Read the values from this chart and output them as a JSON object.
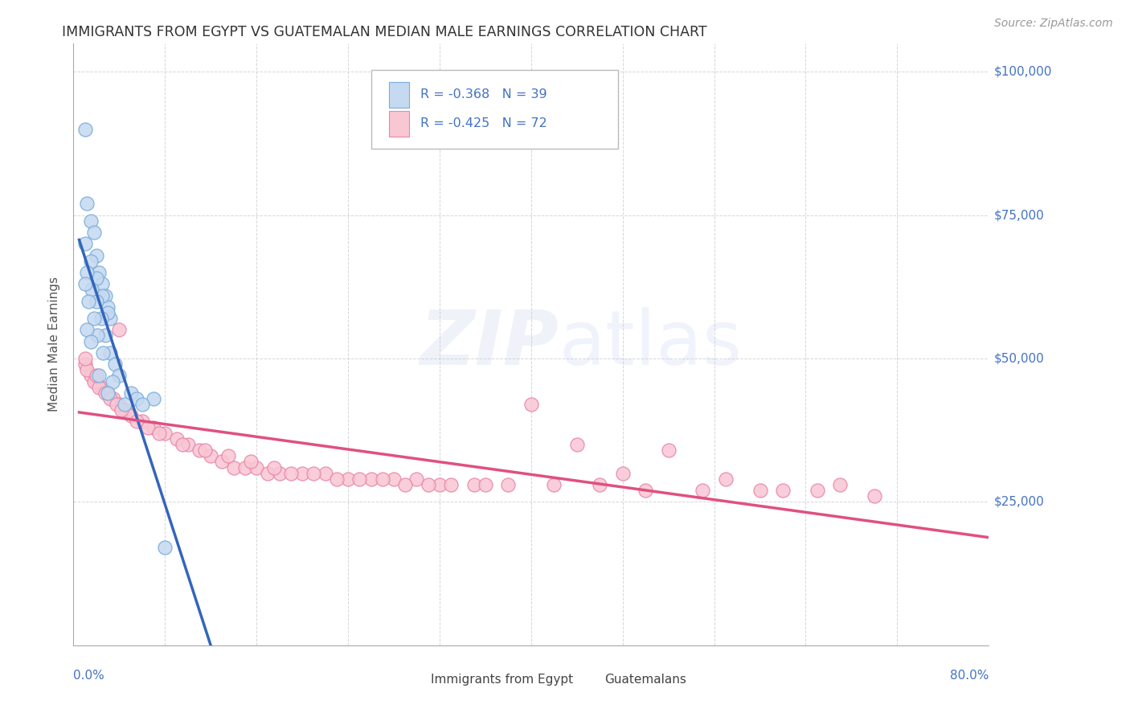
{
  "title": "IMMIGRANTS FROM EGYPT VS GUATEMALAN MEDIAN MALE EARNINGS CORRELATION CHART",
  "source": "Source: ZipAtlas.com",
  "ylabel": "Median Male Earnings",
  "yticks": [
    0,
    25000,
    50000,
    75000,
    100000
  ],
  "background_color": "#ffffff",
  "grid_color": "#cccccc",
  "title_color": "#333333",
  "egypt_fill": "#c5d9f0",
  "egypt_edge": "#7aaddc",
  "guatemalan_fill": "#f9c6d4",
  "guatemalan_edge": "#e888a8",
  "trend1_color": "#3366bb",
  "trend2_color": "#e05080",
  "dash_color": "#88aadd",
  "label_blue": "#4472c4",
  "egypt_x": [
    1.0,
    1.2,
    1.5,
    1.8,
    2.0,
    2.2,
    2.5,
    2.8,
    3.0,
    3.2,
    1.0,
    1.5,
    2.0,
    2.5,
    3.0,
    1.2,
    1.6,
    2.0,
    2.4,
    2.8,
    3.2,
    3.6,
    4.0,
    5.0,
    1.0,
    1.3,
    1.8,
    2.1,
    2.6,
    3.4,
    5.5,
    7.0,
    1.2,
    1.5,
    2.2,
    3.0,
    4.5,
    6.0,
    8.0
  ],
  "egypt_y": [
    90000,
    77000,
    74000,
    72000,
    68000,
    65000,
    63000,
    61000,
    59000,
    57000,
    70000,
    67000,
    64000,
    61000,
    58000,
    65000,
    62000,
    60000,
    57000,
    54000,
    51000,
    49000,
    47000,
    44000,
    63000,
    60000,
    57000,
    54000,
    51000,
    46000,
    43000,
    43000,
    55000,
    53000,
    47000,
    44000,
    42000,
    42000,
    17000
  ],
  "guatemalan_x": [
    1.0,
    1.5,
    2.0,
    2.5,
    3.0,
    3.5,
    4.0,
    4.5,
    5.0,
    6.0,
    7.0,
    8.0,
    9.0,
    10.0,
    11.0,
    12.0,
    13.0,
    14.0,
    15.0,
    16.0,
    17.0,
    18.0,
    20.0,
    22.0,
    24.0,
    26.0,
    28.0,
    30.0,
    32.0,
    35.0,
    38.0,
    42.0,
    46.0,
    50.0,
    55.0,
    60.0,
    65.0,
    70.0,
    1.2,
    1.8,
    2.2,
    2.8,
    3.2,
    3.8,
    4.2,
    5.5,
    6.5,
    7.5,
    9.5,
    11.5,
    13.5,
    15.5,
    17.5,
    19.0,
    21.0,
    23.0,
    25.0,
    27.0,
    29.0,
    31.0,
    33.0,
    36.0,
    40.0,
    44.0,
    48.0,
    52.0,
    57.0,
    62.0,
    67.0,
    1.0,
    2.0,
    4.0
  ],
  "guatemalan_y": [
    49000,
    47000,
    46000,
    45000,
    44000,
    43000,
    42000,
    41000,
    40000,
    39000,
    38000,
    37000,
    36000,
    35000,
    34000,
    33000,
    32000,
    31000,
    31000,
    31000,
    30000,
    30000,
    30000,
    30000,
    29000,
    29000,
    29000,
    29000,
    28000,
    28000,
    28000,
    28000,
    28000,
    27000,
    27000,
    27000,
    27000,
    26000,
    48000,
    46000,
    45000,
    44000,
    43000,
    42000,
    41000,
    39000,
    38000,
    37000,
    35000,
    34000,
    33000,
    32000,
    31000,
    30000,
    30000,
    29000,
    29000,
    29000,
    28000,
    28000,
    28000,
    28000,
    42000,
    35000,
    30000,
    34000,
    29000,
    27000,
    28000,
    50000,
    47000,
    55000
  ]
}
